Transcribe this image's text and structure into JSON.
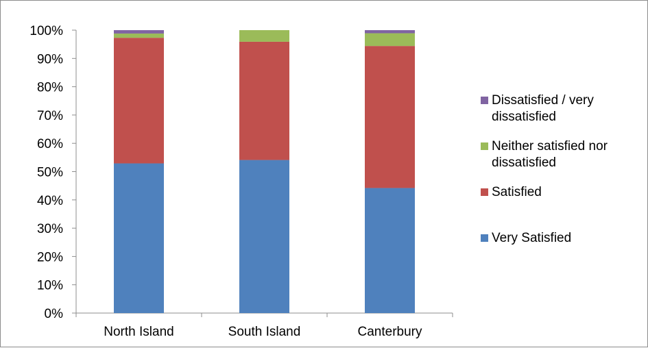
{
  "chart_data": {
    "type": "bar",
    "stacked": true,
    "percent_stacked": true,
    "categories": [
      "North Island",
      "South Island",
      "Canterbury"
    ],
    "series": [
      {
        "name": "Very Satisfied",
        "color": "#4f81bd",
        "values": [
          52.9,
          54.1,
          44.2
        ]
      },
      {
        "name": "Satisfied",
        "color": "#c0504d",
        "values": [
          44.4,
          41.8,
          50.2
        ]
      },
      {
        "name": "Neither satisfied nor dissatisfied",
        "color": "#9bbb59",
        "values": [
          1.5,
          4.1,
          4.5
        ]
      },
      {
        "name": "Dissatisfied / very dissatisfied",
        "color": "#8064a2",
        "values": [
          1.2,
          0.0,
          1.1
        ]
      }
    ],
    "y_ticks": [
      "0%",
      "10%",
      "20%",
      "30%",
      "40%",
      "50%",
      "60%",
      "70%",
      "80%",
      "90%",
      "100%"
    ],
    "ylim": [
      0,
      100
    ],
    "legend_position": "right",
    "grid": false
  }
}
